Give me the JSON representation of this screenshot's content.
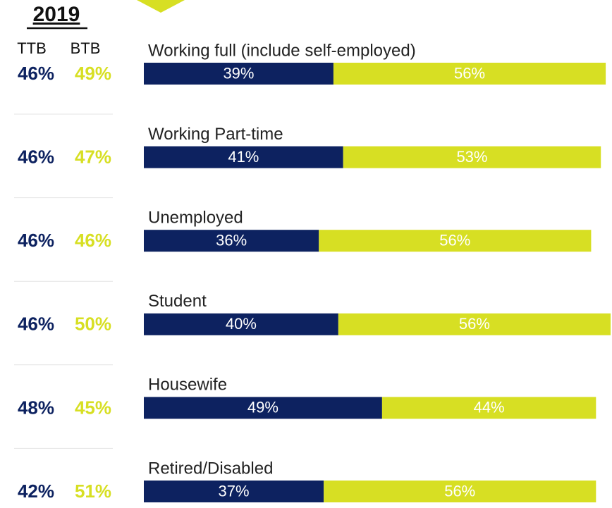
{
  "summary": {
    "title": "2019",
    "rows": [
      [
        "46%",
        "49%"
      ],
      [
        "46%",
        "47%"
      ],
      [
        "46%",
        "46%"
      ],
      [
        "46%",
        "50%"
      ],
      [
        "48%",
        "45%"
      ],
      [
        "42%",
        "51%"
      ]
    ]
  },
  "chart_data": {
    "type": "stacked-barh",
    "categories": [
      "Working full (include self-employed)",
      "Working Part-time",
      "Unemployed",
      "Student",
      "Housewife",
      "Retired/Disabled"
    ],
    "series": [
      {
        "name": "TTB",
        "color": "#0d2260",
        "values": [
          39,
          41,
          36,
          40,
          49,
          37
        ],
        "value_labels": [
          "39%",
          "41%",
          "36%",
          "40%",
          "49%",
          "37%"
        ]
      },
      {
        "name": "BTB",
        "color": "#d7df23",
        "values": [
          56,
          53,
          56,
          56,
          44,
          56
        ],
        "value_labels": [
          "56%",
          "53%",
          "56%",
          "56%",
          "44%",
          "56%"
        ]
      }
    ],
    "xlim": [
      0,
      96
    ]
  }
}
